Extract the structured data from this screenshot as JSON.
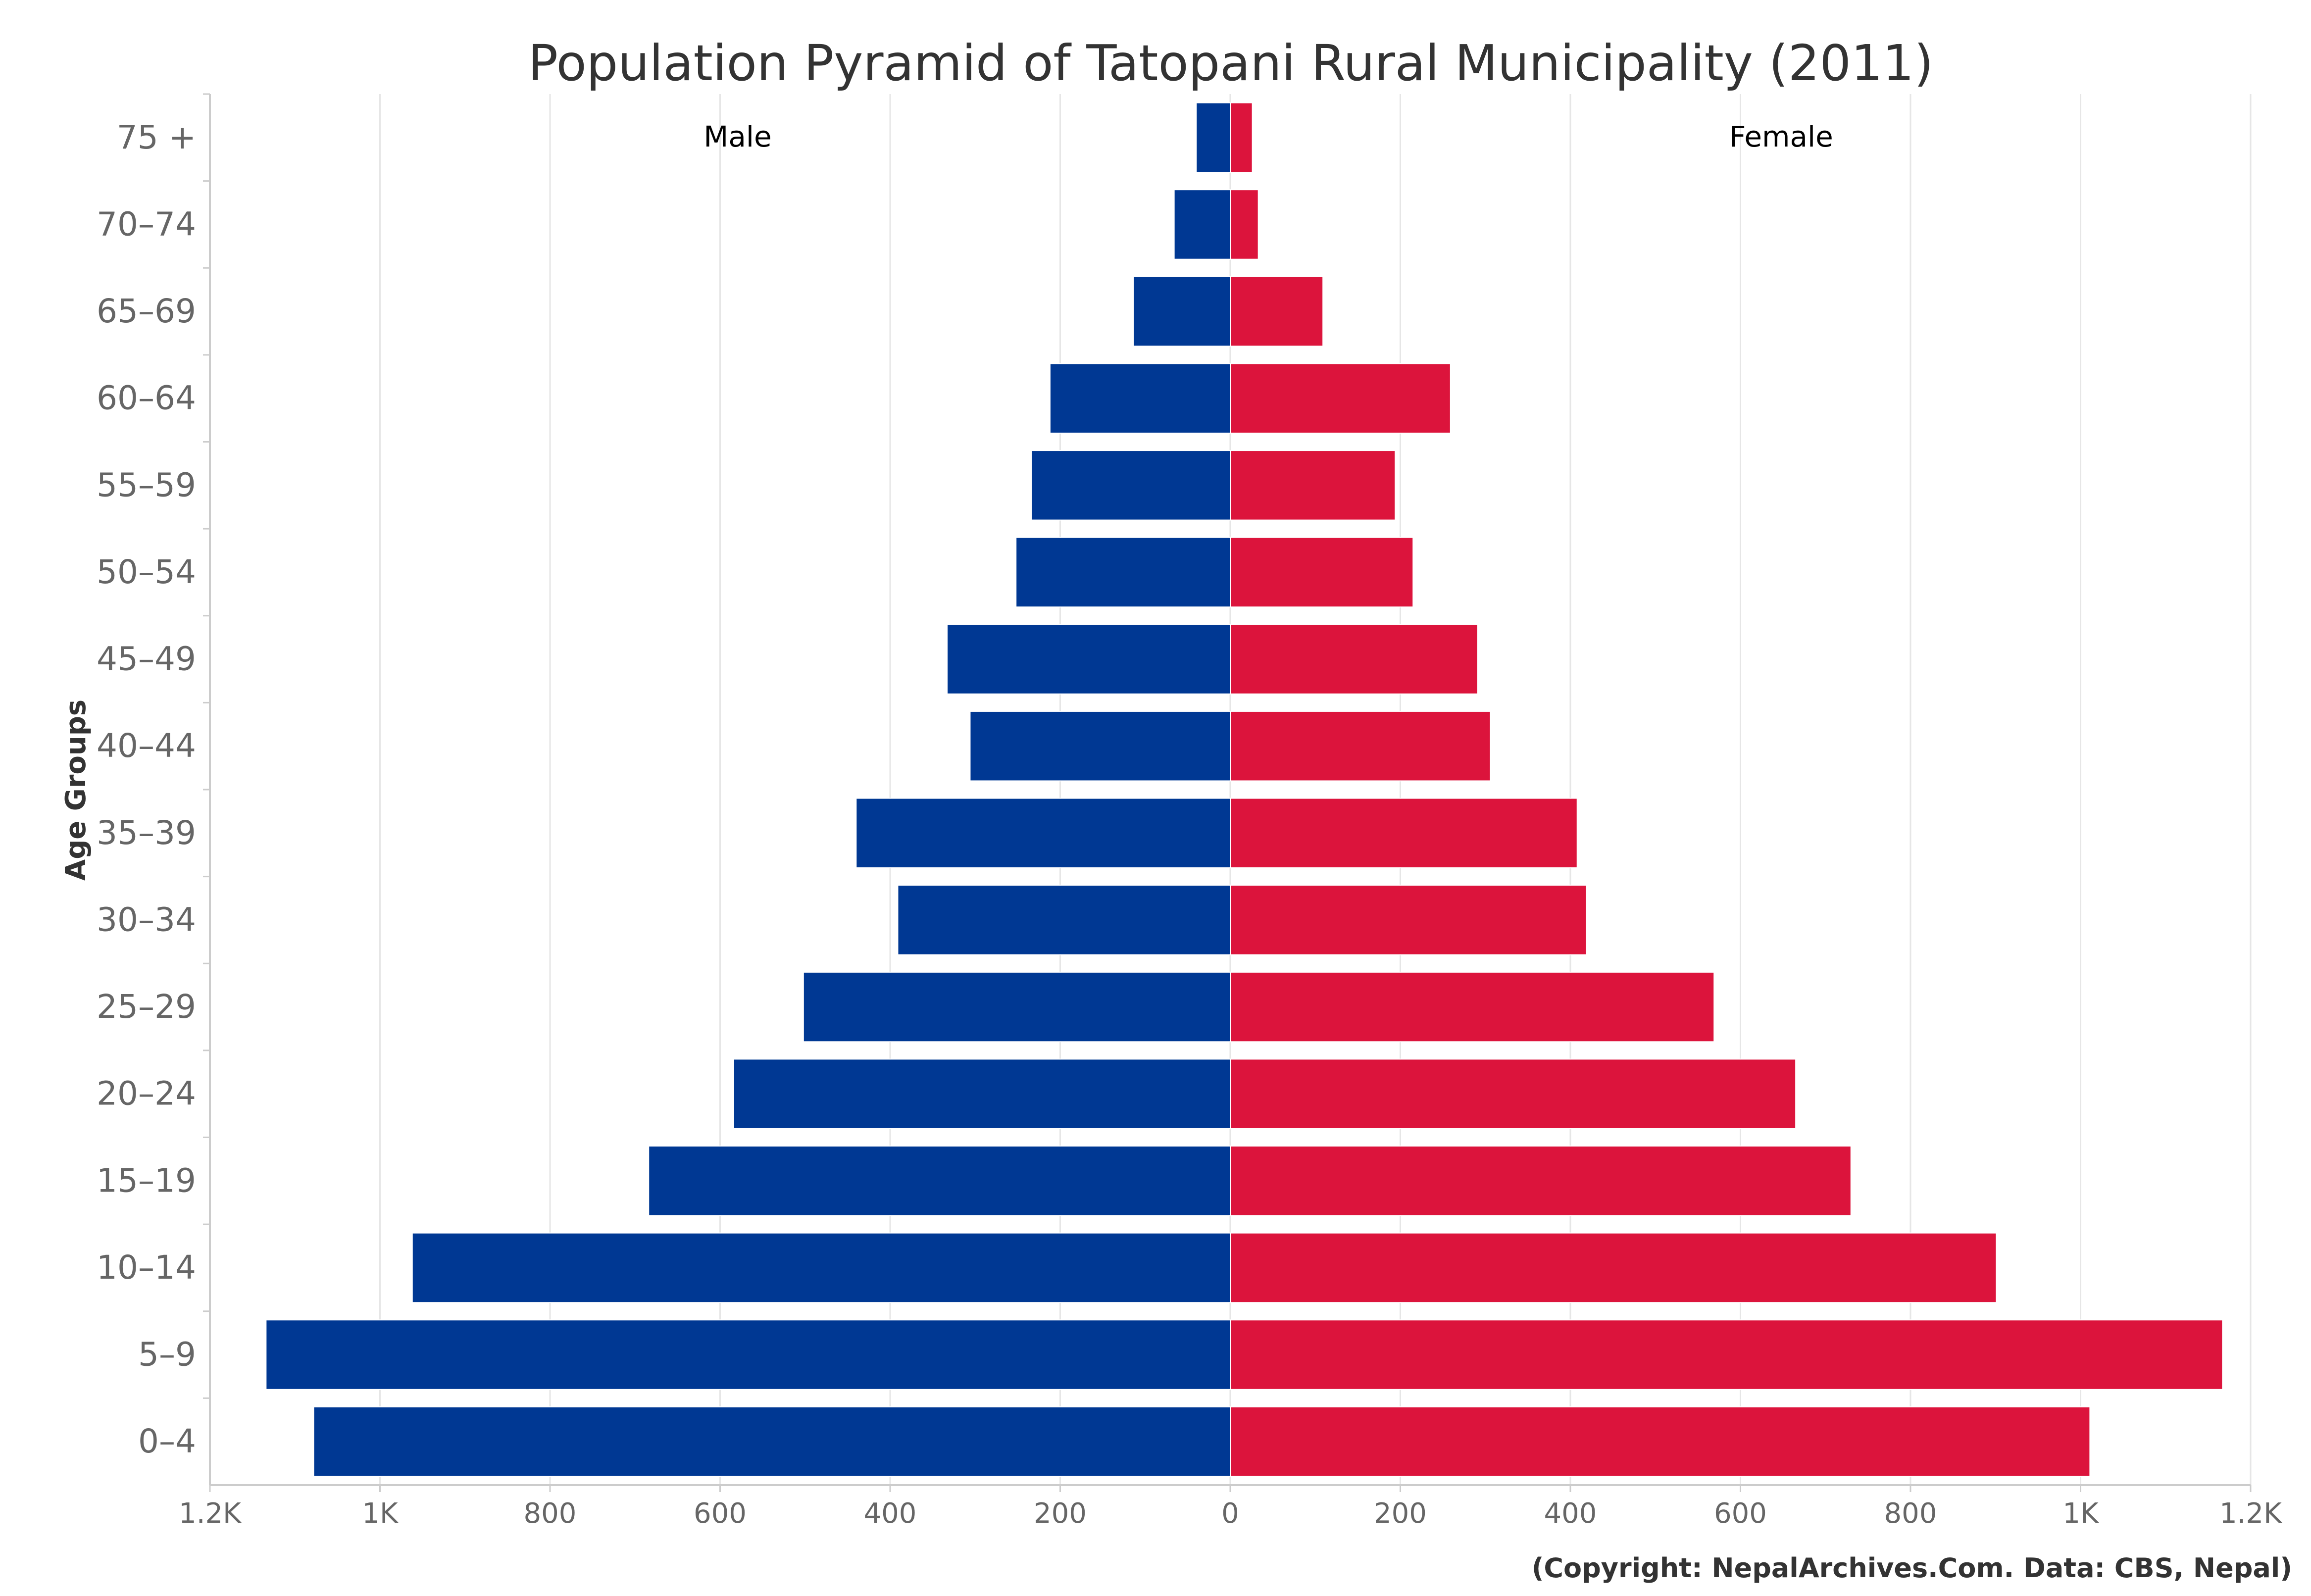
{
  "chart_data": {
    "type": "bar",
    "orientation": "horizontal-pyramid",
    "title": "Population Pyramid of Tatopani Rural Municipality (2011)",
    "ylabel": "Age Groups",
    "xlim": [
      -1200,
      1200
    ],
    "x_ticks": [
      -1200,
      -1000,
      -800,
      -600,
      -400,
      -200,
      0,
      200,
      400,
      600,
      800,
      1000,
      1200
    ],
    "x_tick_labels": [
      "1.2K",
      "1K",
      "800",
      "600",
      "400",
      "200",
      "0",
      "200",
      "400",
      "600",
      "800",
      "1K",
      "1.2K"
    ],
    "categories": [
      "75 +",
      "70-74",
      "65-69",
      "60-64",
      "55-59",
      "50-54",
      "45-49",
      "40-44",
      "35-39",
      "30-34",
      "25-29",
      "20-24",
      "15-19",
      "10-14",
      "5-9",
      "0-4"
    ],
    "series": [
      {
        "name": "Male",
        "color": "#003893",
        "side": "left",
        "values": [
          40,
          66,
          114,
          212,
          234,
          252,
          333,
          306,
          440,
          391,
          502,
          584,
          684,
          962,
          1134,
          1078
        ]
      },
      {
        "name": "Female",
        "color": "#DC143C",
        "side": "right",
        "values": [
          26,
          33,
          109,
          259,
          194,
          215,
          291,
          306,
          408,
          419,
          569,
          665,
          730,
          901,
          1167,
          1011
        ]
      }
    ],
    "grid": true,
    "credit": "(Copyright: NepalArchives.Com. Data: CBS, Nepal)"
  }
}
